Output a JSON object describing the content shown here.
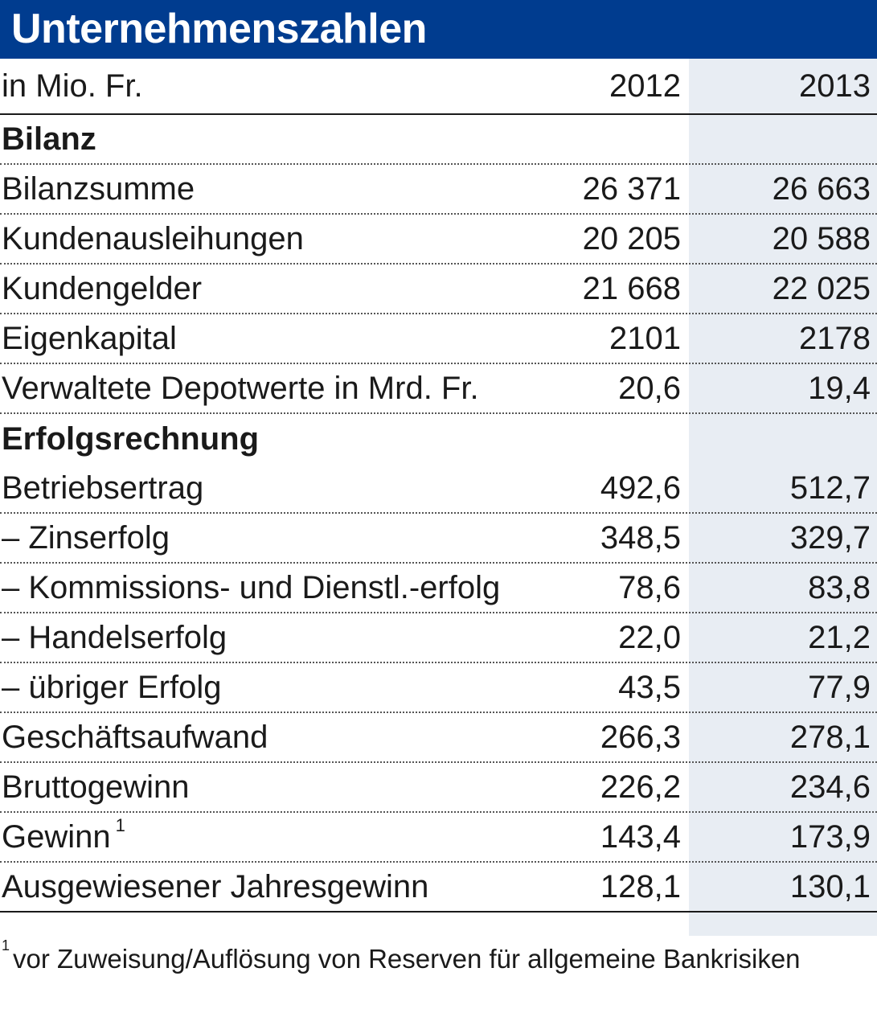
{
  "title": "Unternehmenszahlen",
  "header": {
    "unit": "in Mio. Fr.",
    "col_2012": "2012",
    "col_2013": "2013"
  },
  "chart_data": {
    "type": "table",
    "title": "Unternehmenszahlen",
    "unit": "in Mio. Fr.",
    "columns": [
      "2012",
      "2013"
    ],
    "sections": [
      {
        "name": "Bilanz",
        "rows": [
          {
            "label": "Bilanzsumme",
            "v2012": "26 371",
            "v2013": "26 663"
          },
          {
            "label": "Kundenausleihungen",
            "v2012": "20 205",
            "v2013": "20 588"
          },
          {
            "label": "Kundengelder",
            "v2012": "21 668",
            "v2013": "22 025"
          },
          {
            "label": "Eigenkapital",
            "v2012": "2101",
            "v2013": "2178"
          },
          {
            "label": "Verwaltete Depotwerte in Mrd. Fr.",
            "v2012": "20,6",
            "v2013": "19,4"
          }
        ]
      },
      {
        "name": "Erfolgsrechnung",
        "rows": [
          {
            "label": "Betriebsertrag",
            "v2012": "492,6",
            "v2013": "512,7"
          },
          {
            "label": "– Zinserfolg",
            "v2012": "348,5",
            "v2013": "329,7"
          },
          {
            "label": "– Kommissions- und Dienstl.-erfolg",
            "v2012": "78,6",
            "v2013": "83,8"
          },
          {
            "label": "– Handelserfolg",
            "v2012": "22,0",
            "v2013": "21,2"
          },
          {
            "label": "– übriger Erfolg",
            "v2012": "43,5",
            "v2013": "77,9"
          },
          {
            "label": "Geschäftsaufwand",
            "v2012": "266,3",
            "v2013": "278,1"
          },
          {
            "label": "Bruttogewinn",
            "v2012": "226,2",
            "v2013": "234,6"
          },
          {
            "label": "Gewinn",
            "footnote_mark": "1",
            "v2012": "143,4",
            "v2013": "173,9"
          },
          {
            "label": "Ausgewiesener Jahresgewinn",
            "v2012": "128,1",
            "v2013": "130,1"
          }
        ]
      }
    ]
  },
  "footnote": {
    "mark": "1",
    "text": "vor Zuweisung/Auflösung von Reserven für allgemeine Bankrisiken"
  },
  "colors": {
    "title_bg": "#003c8f",
    "title_fg": "#ffffff",
    "shade": "#e8edf3"
  }
}
